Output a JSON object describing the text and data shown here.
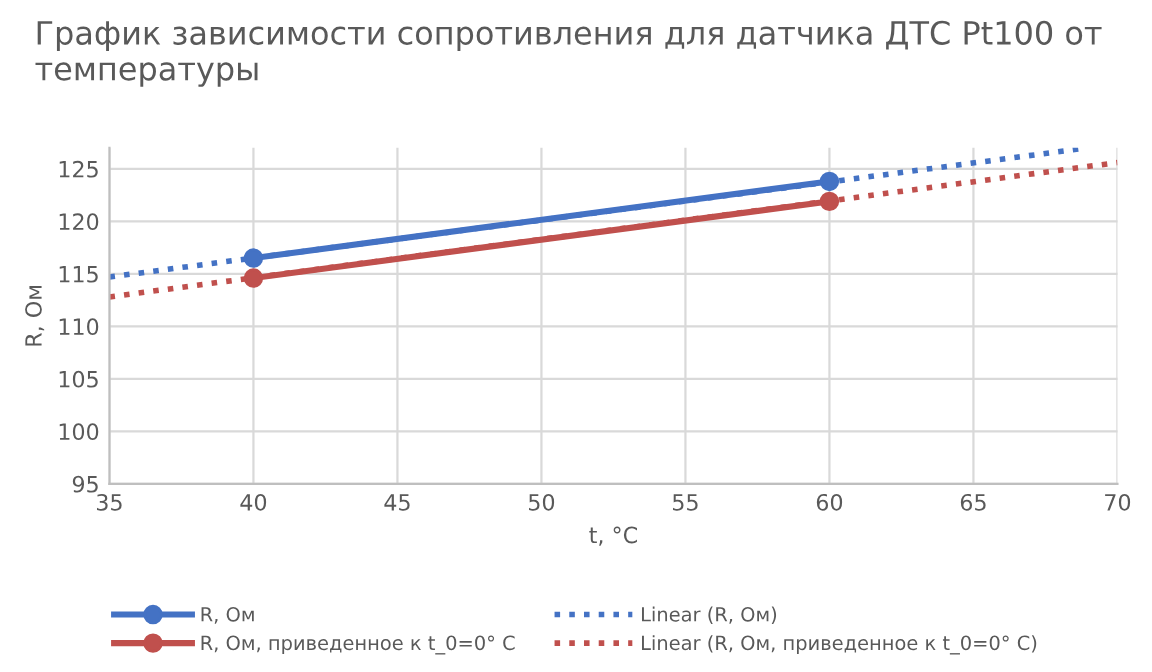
{
  "chart_data": {
    "type": "line",
    "title": "График зависимости сопротивления для датчика ДТС Pt100 от температуры",
    "xlabel": "t, °C",
    "ylabel": "R, Ом",
    "xlim": [
      35,
      70
    ],
    "xticks": [
      35,
      40,
      45,
      50,
      55,
      60,
      65,
      70
    ],
    "ylim": [
      95,
      127
    ],
    "yticks": [
      95,
      100,
      105,
      110,
      115,
      120,
      125
    ],
    "grid": true,
    "legend": "bottom",
    "series": [
      {
        "name": "R, Ом",
        "color": "#4472c4",
        "x": [
          40,
          60
        ],
        "values": [
          116.5,
          123.8
        ],
        "marker": "circle",
        "line_style": "solid"
      },
      {
        "name": "R, Ом, приведенное к t_0=0° C",
        "color": "#c0504d",
        "x": [
          40,
          60
        ],
        "values": [
          114.6,
          121.9
        ],
        "marker": "circle",
        "line_style": "solid"
      },
      {
        "name": "Linear (R, Ом)",
        "color": "#4472c4",
        "x": [
          35,
          68.7
        ],
        "values": [
          114.7,
          126.9
        ],
        "marker": "none",
        "line_style": "dotted"
      },
      {
        "name": "Linear (R, Ом, приведенное к t_0=0° C)",
        "color": "#c0504d",
        "x": [
          35,
          70
        ],
        "values": [
          112.8,
          125.6
        ],
        "marker": "none",
        "line_style": "dotted"
      }
    ]
  }
}
